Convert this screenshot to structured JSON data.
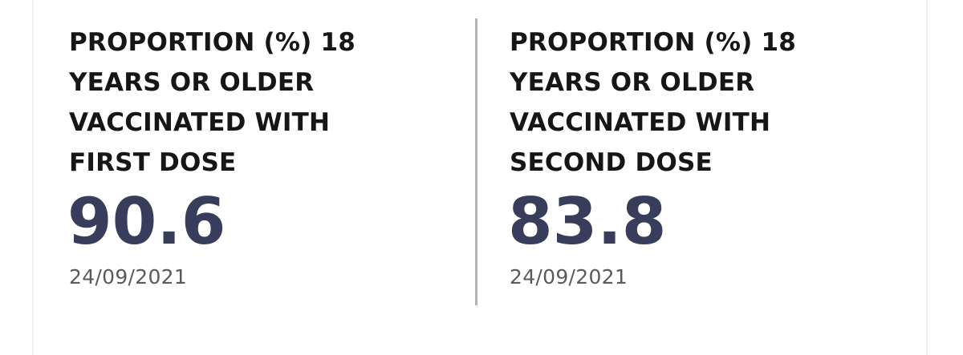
{
  "stats": [
    {
      "title_lines": [
        "PROPORTION (%) 18",
        "YEARS OR OLDER",
        "VACCINATED WITH",
        "FIRST DOSE"
      ],
      "value": "90.6",
      "date": "24/09/2021"
    },
    {
      "title_lines": [
        "PROPORTION (%) 18",
        "YEARS OR OLDER",
        "VACCINATED WITH",
        "SECOND DOSE"
      ],
      "value": "83.8",
      "date": "24/09/2021"
    }
  ],
  "colors": {
    "title": "#161616",
    "value": "#393d5c",
    "date": "#5a5a5a",
    "divider": "#b3b3b3"
  }
}
